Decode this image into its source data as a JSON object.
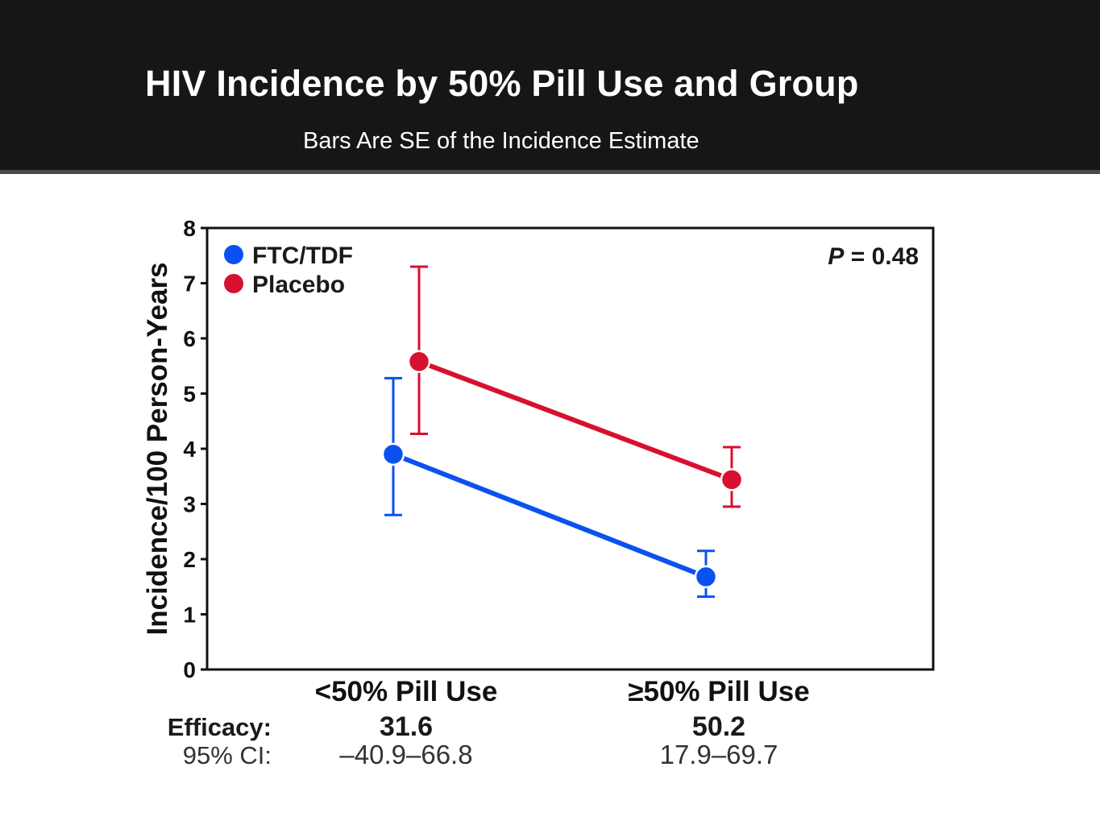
{
  "slide": {
    "title": "HIV Incidence by 50% Pill Use and Group",
    "subtitle": "Bars Are SE of the Incidence Estimate"
  },
  "colors": {
    "header_bg": "#161616",
    "ftc_tdf": "#0a52f0",
    "placebo": "#d8102f",
    "axis": "#111111"
  },
  "chart_data": {
    "type": "line",
    "ylabel": "Incidence/100 Person-Years",
    "ylim": [
      0,
      8
    ],
    "yticks": [
      0,
      1,
      2,
      3,
      4,
      5,
      6,
      7,
      8
    ],
    "categories": [
      "<50% Pill Use",
      "≥50% Pill Use"
    ],
    "annotation": {
      "italic": "P",
      "rest": " = 0.48",
      "placement": "top-right"
    },
    "legend_placement": "top-left",
    "grid": false,
    "series": [
      {
        "name": "FTC/TDF",
        "color": "#0a52f0",
        "values": [
          3.9,
          1.68
        ],
        "se_low": [
          2.8,
          1.32
        ],
        "se_high": [
          5.28,
          2.15
        ]
      },
      {
        "name": "Placebo",
        "color": "#d8102f",
        "values": [
          5.58,
          3.44
        ],
        "se_low": [
          4.27,
          2.95
        ],
        "se_high": [
          7.3,
          4.03
        ]
      }
    ],
    "efficacy": {
      "label": "Efficacy:",
      "ci_label": "95% CI:",
      "values": [
        "31.6",
        "50.2"
      ],
      "ci": [
        "–40.9–66.8",
        "17.9–69.7"
      ]
    }
  }
}
